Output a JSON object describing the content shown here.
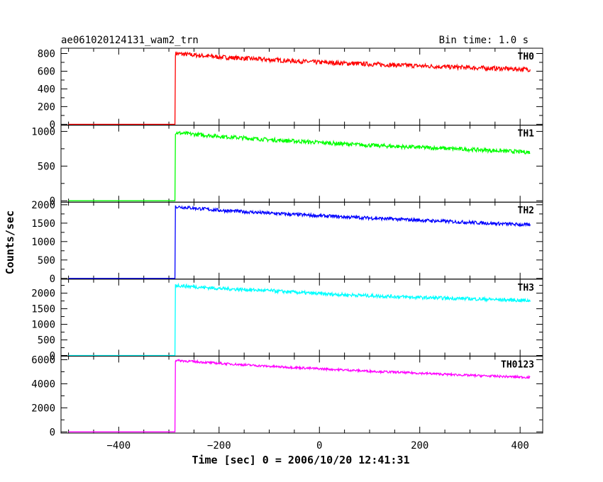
{
  "header": {
    "title": "ae061020124131_wam2_trn",
    "bin_time": "Bin time: 1.0 s"
  },
  "axes": {
    "xlabel": "Time [sec] 0 = 2006/10/20 12:41:31",
    "ylabel": "Counts/sec"
  },
  "chart_data": {
    "type": "line",
    "title": "ae061020124131_wam2_trn",
    "xlabel": "Time [sec] 0 = 2006/10/20 12:41:31",
    "ylabel": "Counts/sec",
    "xlim": [
      -515,
      445
    ],
    "x_ticks": [
      -400,
      -200,
      0,
      200,
      400
    ],
    "x_tick_labels": [
      "−400",
      "−200",
      "0",
      "200",
      "400"
    ],
    "grid": false,
    "legend": "none",
    "panels": [
      {
        "name": "TH0",
        "color": "#ff0000",
        "ylim": [
          -10,
          860
        ],
        "yticks": [
          0,
          200,
          400,
          600,
          800
        ],
        "x": [
          -500,
          -288,
          -287,
          -200,
          -100,
          0,
          100,
          200,
          300,
          420
        ],
        "y": [
          0,
          0,
          800,
          760,
          730,
          700,
          680,
          660,
          640,
          620
        ],
        "noise": 25
      },
      {
        "name": "TH1",
        "color": "#00ff00",
        "ylim": [
          -20,
          1090
        ],
        "yticks": [
          0,
          500,
          1000
        ],
        "x": [
          -500,
          -288,
          -287,
          -200,
          -100,
          0,
          100,
          200,
          300,
          420
        ],
        "y": [
          0,
          0,
          980,
          930,
          880,
          840,
          800,
          770,
          740,
          700
        ],
        "noise": 28
      },
      {
        "name": "TH2",
        "color": "#0000ff",
        "ylim": [
          -20,
          2070
        ],
        "yticks": [
          0,
          500,
          1000,
          1500,
          2000
        ],
        "x": [
          -500,
          -288,
          -287,
          -200,
          -100,
          0,
          100,
          200,
          300,
          420
        ],
        "y": [
          0,
          0,
          1950,
          1850,
          1770,
          1700,
          1640,
          1580,
          1520,
          1450
        ],
        "noise": 45
      },
      {
        "name": "TH3",
        "color": "#00ffff",
        "ylim": [
          -20,
          2450
        ],
        "yticks": [
          0,
          500,
          1000,
          1500,
          2000
        ],
        "x": [
          -500,
          -288,
          -287,
          -200,
          -100,
          0,
          100,
          200,
          300,
          420
        ],
        "y": [
          0,
          0,
          2250,
          2150,
          2080,
          1980,
          1920,
          1860,
          1820,
          1760
        ],
        "noise": 55
      },
      {
        "name": "TH0123",
        "color": "#ff00ff",
        "ylim": [
          -100,
          6300
        ],
        "yticks": [
          0,
          2000,
          4000,
          6000
        ],
        "x": [
          -500,
          -288,
          -287,
          -200,
          -100,
          0,
          100,
          200,
          300,
          420
        ],
        "y": [
          0,
          0,
          5950,
          5700,
          5450,
          5250,
          5050,
          4880,
          4700,
          4530
        ],
        "noise": 90
      }
    ]
  }
}
